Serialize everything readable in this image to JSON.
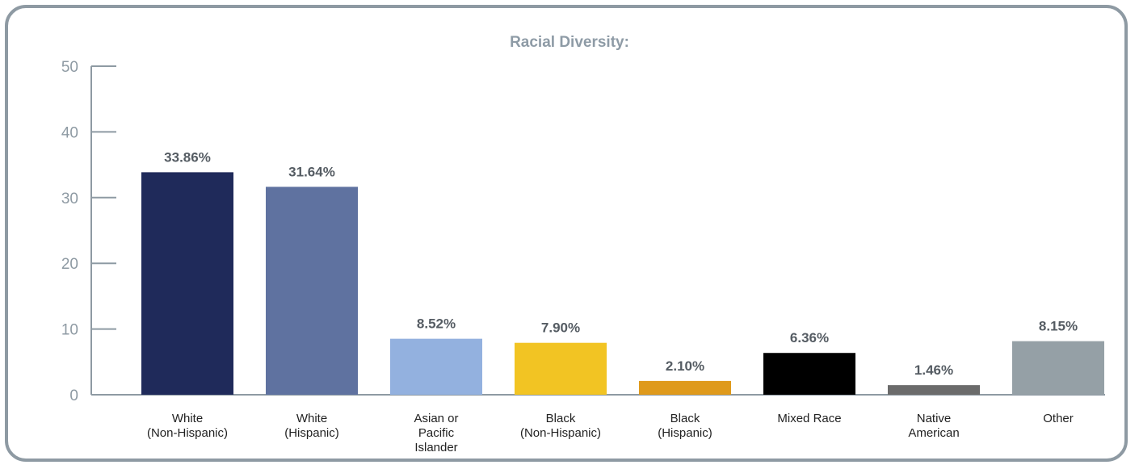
{
  "chart_data": {
    "type": "bar",
    "title": "Racial Diversity:",
    "xlabel": "",
    "ylabel": "",
    "ylim": [
      0,
      50
    ],
    "yticks": [
      0,
      10,
      20,
      30,
      40,
      50
    ],
    "categories": [
      [
        "White",
        "(Non-Hispanic)"
      ],
      [
        "White",
        "(Hispanic)"
      ],
      [
        "Asian or",
        "Pacific",
        "Islander"
      ],
      [
        "Black",
        "(Non-Hispanic)"
      ],
      [
        "Black",
        "(Hispanic)"
      ],
      [
        "Mixed Race"
      ],
      [
        "Native",
        "American"
      ],
      [
        "Other"
      ]
    ],
    "values": [
      33.86,
      31.64,
      8.52,
      7.9,
      2.1,
      6.36,
      1.46,
      8.15
    ],
    "value_labels": [
      "33.86%",
      "31.64%",
      "8.52%",
      "7.90%",
      "2.10%",
      "6.36%",
      "1.46%",
      "8.15%"
    ],
    "colors": [
      "#1f2a5a",
      "#5f72a0",
      "#93b1df",
      "#f2c423",
      "#df9a1c",
      "#000000",
      "#6b6b6b",
      "#95a0a6"
    ],
    "grid": false,
    "legend": "none"
  },
  "style": {
    "frame_color": "#8e9aa3",
    "axis_color": "#8e9aa3",
    "title_color": "#8e9ba6"
  }
}
